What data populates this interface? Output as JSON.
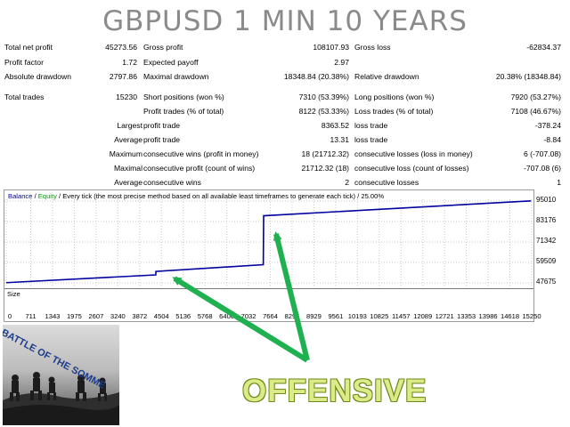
{
  "title": "GBPUSD 1 MIN 10 YEARS",
  "stats": {
    "total_net_profit_label": "Total net profit",
    "total_net_profit": "45273.56",
    "gross_profit_label": "Gross profit",
    "gross_profit": "108107.93",
    "gross_loss_label": "Gross loss",
    "gross_loss": "-62834.37",
    "profit_factor_label": "Profit factor",
    "profit_factor": "1.72",
    "expected_payoff_label": "Expected payoff",
    "expected_payoff": "2.97",
    "absolute_drawdown_label": "Absolute drawdown",
    "absolute_drawdown": "2797.86",
    "maximal_drawdown_label": "Maximal drawdown",
    "maximal_drawdown": "18348.84 (20.38%)",
    "relative_drawdown_label": "Relative drawdown",
    "relative_drawdown": "20.38% (18348.84)",
    "total_trades_label": "Total trades",
    "total_trades": "15230",
    "short_positions_label": "Short positions (won %)",
    "short_positions": "7310 (53.39%)",
    "long_positions_label": "Long positions (won %)",
    "long_positions": "7920 (53.27%)",
    "profit_trades_label": "Profit trades (% of total)",
    "profit_trades": "8122 (53.33%)",
    "loss_trades_label": "Loss trades (% of total)",
    "loss_trades": "7108 (46.67%)",
    "largest_label": "Largest",
    "largest_profit_trade_label": "profit trade",
    "largest_profit_trade": "8363.52",
    "largest_loss_trade_label": "loss trade",
    "largest_loss_trade": "-378.24",
    "average_label": "Average",
    "average_profit_trade_label": "profit trade",
    "average_profit_trade": "13.31",
    "average_loss_trade_label": "loss trade",
    "average_loss_trade": "-8.84",
    "maximum_label": "Maximum",
    "max_consec_wins_label": "consecutive wins (profit in money)",
    "max_consec_wins": "18 (21712.32)",
    "max_consec_losses_label": "consecutive losses (loss in money)",
    "max_consec_losses": "6 (-707.08)",
    "maximal_label": "Maximal",
    "maximal_consec_profit_label": "consecutive profit (count of wins)",
    "maximal_consec_profit": "21712.32 (18)",
    "maximal_consec_loss_label": "consecutive loss (count of losses)",
    "maximal_consec_loss": "-707.08 (6)",
    "average2_label": "Average",
    "avg_consec_wins_label": "consecutive wins",
    "avg_consec_wins": "2",
    "avg_consec_losses_label": "consecutive losses",
    "avg_consec_losses": "1"
  },
  "chart_legend": {
    "balance": "Balance",
    "sep1": " / ",
    "equity": "Equity",
    "rest": " / Every tick (the most precise method based on all available least timeframes to generate each tick) / 25.00%"
  },
  "size_label": "Size",
  "colors": {
    "balance": "#0000a0",
    "equity": "#00a000",
    "arrow": "#1fb04f"
  },
  "chart_data": {
    "type": "line",
    "y_tick_labels": [
      "95010",
      "83176",
      "71342",
      "59509",
      "47675"
    ],
    "x_tick_labels": [
      "0",
      "711",
      "1343",
      "1975",
      "2607",
      "3240",
      "3872",
      "4504",
      "5136",
      "5768",
      "6400",
      "7032",
      "7664",
      "8296",
      "8929",
      "9561",
      "10193",
      "10825",
      "11457",
      "12089",
      "12721",
      "13353",
      "13986",
      "14618",
      "15250"
    ],
    "ylim": [
      47675,
      95010
    ],
    "xlim": [
      0,
      15250
    ],
    "series": [
      {
        "name": "Balance",
        "x": [
          0,
          4340,
          4345,
          7460,
          7470,
          15230
        ],
        "y": [
          47800,
          52300,
          54300,
          58200,
          86500,
          95100
        ]
      }
    ]
  },
  "photo_caption": "BATTLE OF THE SOMME",
  "overlay_text": "OFFENSIVE"
}
